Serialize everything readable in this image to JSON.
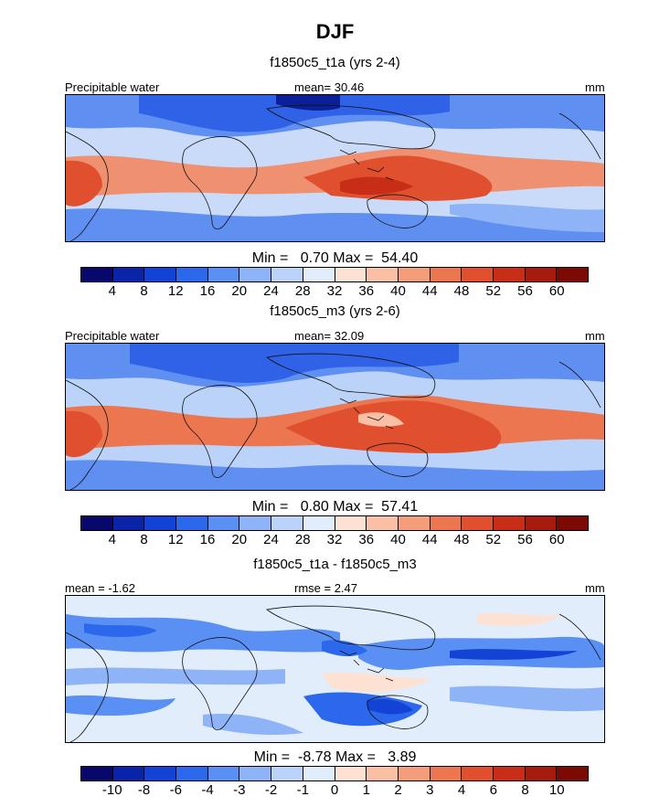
{
  "title": "DJF",
  "panels": [
    {
      "subtitle": "f1850c5_t1a (yrs 2-4)",
      "left_label": "Precipitable water",
      "center_label": "mean=  30.46",
      "right_label": "mm",
      "minmax": "Min =   0.70 Max =  54.40",
      "ticks": [
        "4",
        "8",
        "12",
        "16",
        "20",
        "24",
        "28",
        "32",
        "36",
        "40",
        "44",
        "48",
        "52",
        "56",
        "60"
      ]
    },
    {
      "subtitle": "f1850c5_m3 (yrs 2-6)",
      "left_label": "Precipitable water",
      "center_label": "mean=  32.09",
      "right_label": "mm",
      "minmax": "Min =   0.80 Max =  57.41",
      "ticks": [
        "4",
        "8",
        "12",
        "16",
        "20",
        "24",
        "28",
        "32",
        "36",
        "40",
        "44",
        "48",
        "52",
        "56",
        "60"
      ]
    },
    {
      "subtitle": "f1850c5_t1a - f1850c5_m3",
      "left_label": "mean =  -1.62",
      "center_label": "rmse =   2.47",
      "right_label": "mm",
      "minmax": "Min =  -8.78 Max =   3.89",
      "ticks": [
        "-10",
        "-8",
        "-6",
        "-4",
        "-3",
        "-2",
        "-1",
        "0",
        "1",
        "2",
        "3",
        "4",
        "6",
        "8",
        "10"
      ]
    }
  ],
  "colorbar_colors": [
    "#08076b",
    "#0a23a8",
    "#1343d5",
    "#2c68ec",
    "#5a8ff4",
    "#8eb3f7",
    "#bcd3f9",
    "#e2edfb",
    "#fde2d4",
    "#f9c0a6",
    "#f39d7a",
    "#ec7650",
    "#e0502f",
    "#c72d17",
    "#a51b0e",
    "#7b0a05"
  ]
}
